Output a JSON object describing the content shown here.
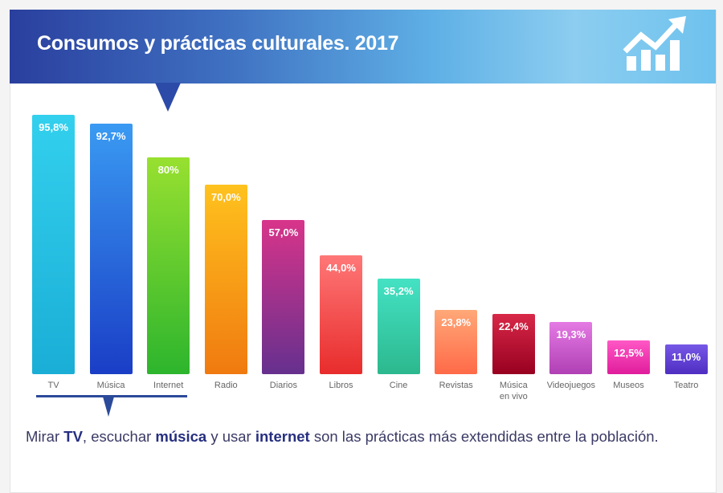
{
  "header": {
    "title": "Consumos y prácticas culturales. 2017",
    "icon": "growth-chart-icon"
  },
  "chart_data": {
    "type": "bar",
    "title": "Consumos y prácticas culturales. 2017",
    "ylim": [
      0,
      100
    ],
    "grid": false,
    "categories": [
      "TV",
      "Música",
      "Internet",
      "Radio",
      "Diarios",
      "Libros",
      "Cine",
      "Revistas",
      "Música en vivo",
      "Videojuegos",
      "Museos",
      "Teatro"
    ],
    "values": [
      95.8,
      92.7,
      80,
      70.0,
      57.0,
      44.0,
      35.2,
      23.8,
      22.4,
      19.3,
      12.5,
      11.0
    ],
    "value_labels": [
      "95,8%",
      "92,7%",
      "80%",
      "70,0%",
      "57,0%",
      "44,0%",
      "35,2%",
      "23,8%",
      "22,4%",
      "19,3%",
      "12,5%",
      "11,0%"
    ],
    "colors": [
      [
        "#33d0ee",
        "#1aaed6"
      ],
      [
        "#3a9af2",
        "#1a3ec6"
      ],
      [
        "#98e030",
        "#2db52d"
      ],
      [
        "#ffc21e",
        "#f07a10"
      ],
      [
        "#d8348a",
        "#66308e"
      ],
      [
        "#ff7777",
        "#e82c2c"
      ],
      [
        "#44e2c4",
        "#2cb88e"
      ],
      [
        "#ffa878",
        "#ff6a48"
      ],
      [
        "#d82848",
        "#980020"
      ],
      [
        "#e47ae4",
        "#b040b4"
      ],
      [
        "#ff58c6",
        "#e01c9c"
      ],
      [
        "#7658e6",
        "#4e2ec2"
      ]
    ]
  },
  "caption": {
    "p1": "Mirar ",
    "b1": "TV",
    "p2": ", escuchar ",
    "b2": "música",
    "p3": " y usar ",
    "b3": "internet",
    "p4": " son las prácticas más extendidas entre la población."
  }
}
